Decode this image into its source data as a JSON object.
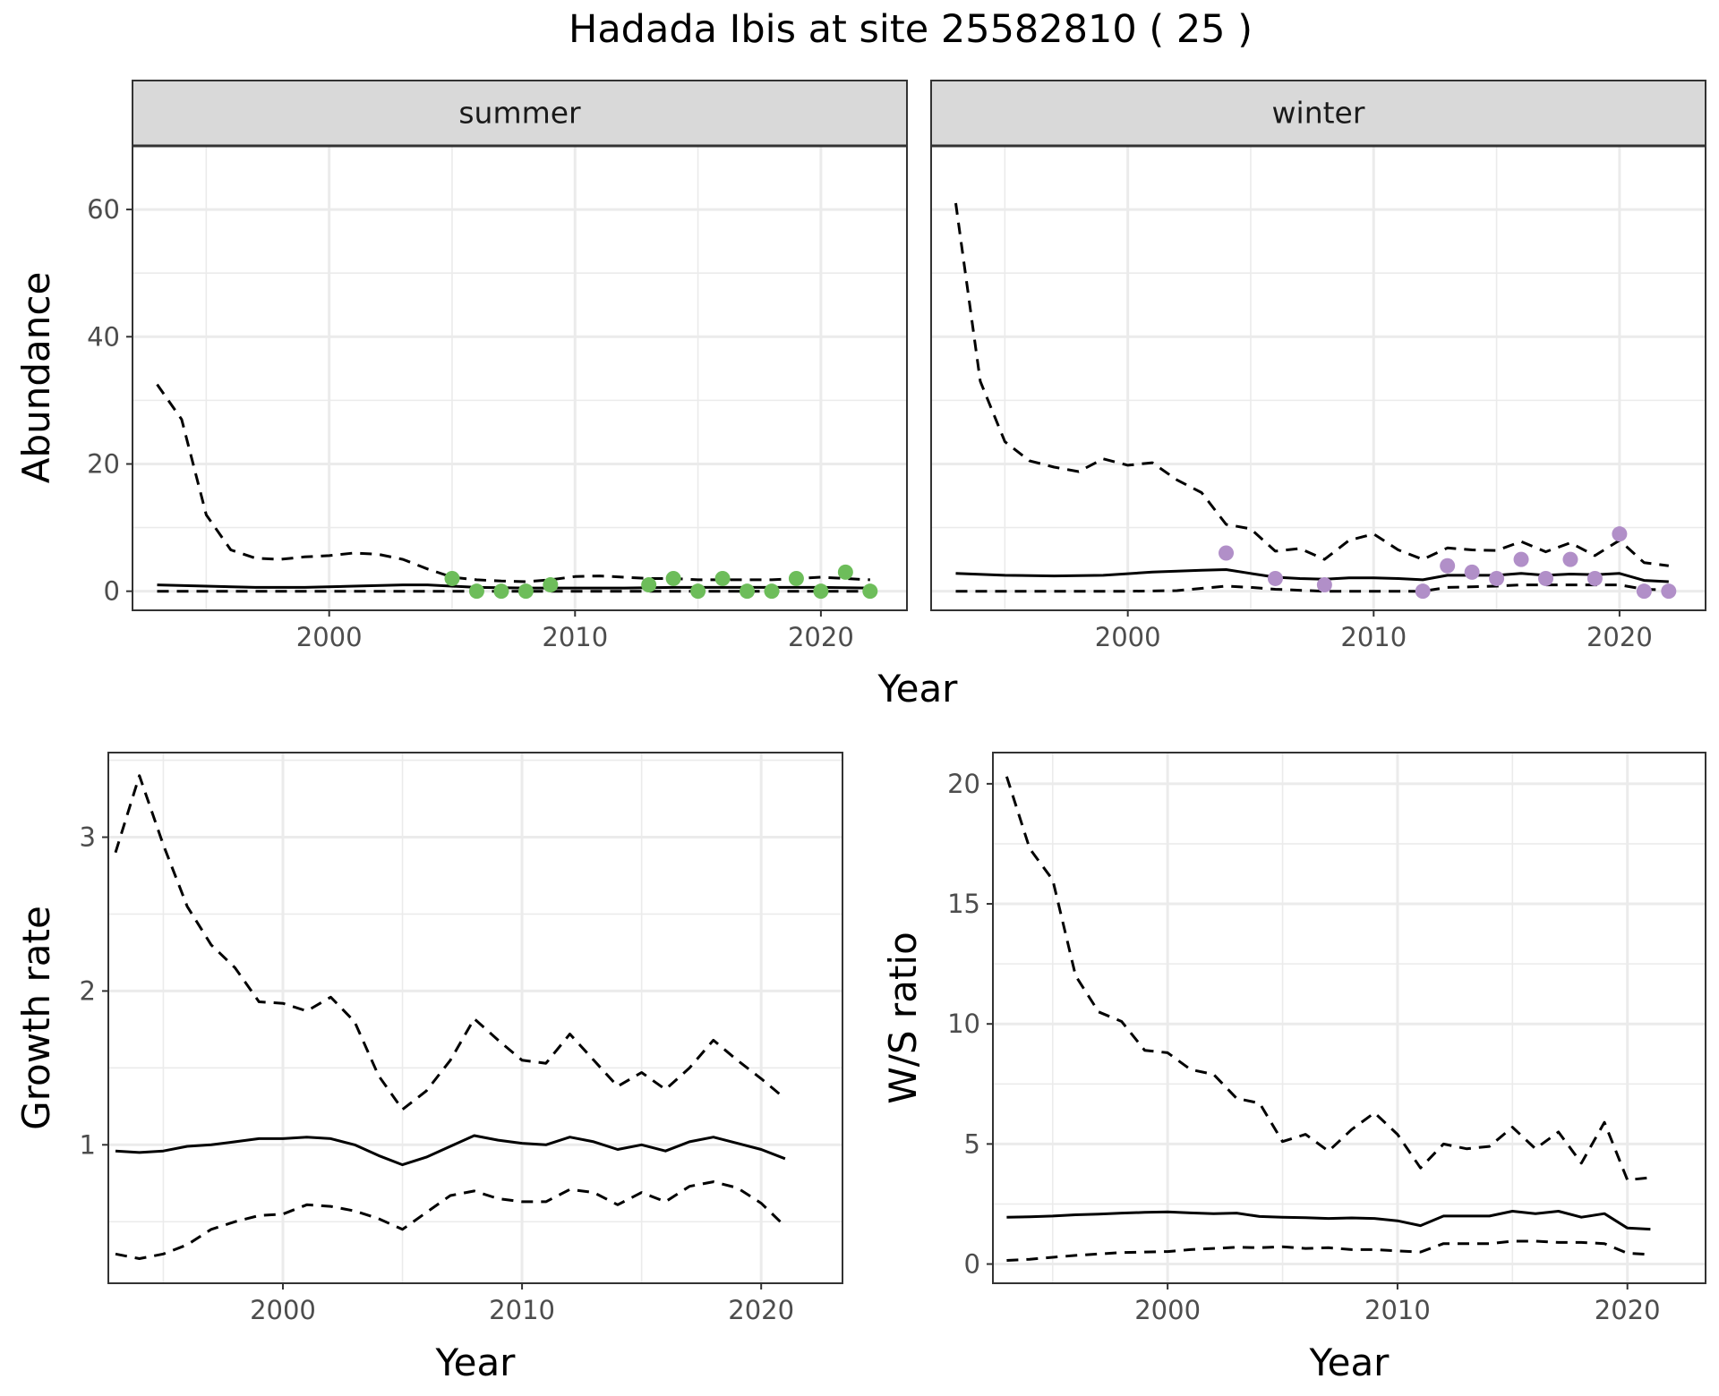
{
  "title": "Hadada Ibis at site 25582810 ( 25 )",
  "colors": {
    "summer_points": "#6dbd5a",
    "winter_points": "#b18fc8",
    "line": "#000000",
    "strip": "#d9d9d9",
    "grid": "#ebebeb"
  },
  "chart_data": [
    {
      "type": "scatter",
      "panel": "summer",
      "xlabel": "Year",
      "ylabel": "Abundance",
      "xlim": [
        1992,
        2023.5
      ],
      "ylim": [
        -3,
        70
      ],
      "xticks": [
        2000,
        2010,
        2020
      ],
      "yticks": [
        0,
        20,
        40,
        60
      ],
      "grid": true,
      "points": {
        "x": [
          2005,
          2006,
          2007,
          2008,
          2009,
          2013,
          2014,
          2015,
          2016,
          2017,
          2018,
          2019,
          2020,
          2021,
          2022
        ],
        "y": [
          2,
          0,
          0,
          0,
          1,
          1,
          2,
          0,
          2,
          0,
          0,
          2,
          0,
          3,
          0
        ]
      },
      "series": [
        {
          "style": "solid",
          "x": [
            1993,
            1995,
            1997,
            1999,
            2001,
            2003,
            2004,
            2006,
            2008,
            2010,
            2012,
            2014,
            2016,
            2018,
            2020,
            2022
          ],
          "y": [
            1.0,
            0.8,
            0.6,
            0.6,
            0.8,
            1.0,
            1.0,
            0.6,
            0.5,
            0.5,
            0.5,
            0.6,
            0.6,
            0.6,
            0.6,
            0.5
          ]
        },
        {
          "style": "dashed",
          "x": [
            1993,
            1994,
            1995,
            1996,
            1997,
            1998,
            1999,
            2000,
            2001,
            2002,
            2003,
            2004,
            2005,
            2006,
            2007,
            2008,
            2009,
            2010,
            2011,
            2012,
            2013,
            2014,
            2015,
            2016,
            2017,
            2018,
            2019,
            2020,
            2021,
            2022
          ],
          "y": [
            32.5,
            27,
            12,
            6.5,
            5.2,
            5.0,
            5.4,
            5.6,
            6.0,
            5.8,
            5.0,
            3.5,
            2.2,
            1.8,
            1.6,
            1.5,
            1.8,
            2.3,
            2.4,
            2.2,
            2.0,
            2.0,
            1.8,
            1.8,
            1.8,
            1.8,
            2.0,
            2.2,
            2.0,
            1.8
          ]
        },
        {
          "style": "dashed",
          "x": [
            1993,
            2000,
            2005,
            2010,
            2015,
            2020,
            2022
          ],
          "y": [
            0,
            0,
            0,
            0,
            0,
            0,
            0
          ]
        }
      ]
    },
    {
      "type": "scatter",
      "panel": "winter",
      "xlabel": "Year",
      "ylabel": "",
      "xlim": [
        1992,
        2023.5
      ],
      "ylim": [
        -3,
        70
      ],
      "xticks": [
        2000,
        2010,
        2020
      ],
      "yticks": [
        0,
        20,
        40,
        60
      ],
      "grid": true,
      "points": {
        "x": [
          2004,
          2006,
          2008,
          2012,
          2013,
          2014,
          2015,
          2016,
          2017,
          2018,
          2019,
          2020,
          2021,
          2022
        ],
        "y": [
          6,
          2,
          1,
          0,
          4,
          3,
          2,
          5,
          2,
          5,
          2,
          9,
          0,
          0
        ]
      },
      "series": [
        {
          "style": "solid",
          "x": [
            1993,
            1995,
            1997,
            1999,
            2001,
            2003,
            2004,
            2005,
            2006,
            2007,
            2008,
            2009,
            2010,
            2011,
            2012,
            2013,
            2014,
            2015,
            2016,
            2017,
            2018,
            2019,
            2020,
            2021,
            2022
          ],
          "y": [
            2.8,
            2.5,
            2.4,
            2.5,
            3.0,
            3.3,
            3.4,
            2.8,
            2.2,
            2.0,
            1.9,
            2.1,
            2.1,
            2.0,
            1.8,
            2.5,
            2.5,
            2.5,
            2.8,
            2.5,
            2.7,
            2.6,
            2.8,
            1.7,
            1.5
          ]
        },
        {
          "style": "dashed",
          "x": [
            1993,
            1994,
            1995,
            1996,
            1997,
            1998,
            1999,
            2000,
            2001,
            2002,
            2003,
            2004,
            2005,
            2006,
            2007,
            2008,
            2009,
            2010,
            2011,
            2012,
            2013,
            2014,
            2015,
            2016,
            2017,
            2018,
            2019,
            2020,
            2021,
            2022
          ],
          "y": [
            61,
            33,
            23.5,
            20.5,
            19.5,
            18.8,
            20.8,
            19.8,
            20.2,
            17.5,
            15.5,
            10.5,
            9.8,
            6.3,
            6.7,
            5.0,
            8.0,
            9.0,
            6.5,
            5.0,
            6.8,
            6.5,
            6.4,
            7.8,
            6.2,
            7.6,
            5.6,
            8.0,
            4.5,
            4.0
          ]
        },
        {
          "style": "dashed",
          "x": [
            1993,
            2000,
            2002,
            2004,
            2005,
            2006,
            2008,
            2010,
            2012,
            2013,
            2015,
            2016,
            2018,
            2020,
            2021,
            2022
          ],
          "y": [
            0,
            0,
            0.1,
            0.8,
            0.6,
            0.3,
            0,
            0,
            0,
            0.6,
            0.8,
            1.0,
            1.0,
            1.0,
            0.3,
            0.2
          ]
        }
      ]
    },
    {
      "type": "line",
      "panel": "growth",
      "xlabel": "Year",
      "ylabel": "Growth rate",
      "xlim": [
        1992.7,
        2023.4
      ],
      "ylim": [
        0.1,
        3.55
      ],
      "xticks": [
        2000,
        2010,
        2020
      ],
      "yticks": [
        1,
        2,
        3
      ],
      "grid": true,
      "series": [
        {
          "style": "solid",
          "x": [
            1993,
            1994,
            1995,
            1996,
            1997,
            1998,
            1999,
            2000,
            2001,
            2002,
            2003,
            2004,
            2005,
            2006,
            2007,
            2008,
            2009,
            2010,
            2011,
            2012,
            2013,
            2014,
            2015,
            2016,
            2017,
            2018,
            2019,
            2020,
            2021
          ],
          "y": [
            0.96,
            0.95,
            0.96,
            0.99,
            1.0,
            1.02,
            1.04,
            1.04,
            1.05,
            1.04,
            1.0,
            0.93,
            0.87,
            0.92,
            0.99,
            1.06,
            1.03,
            1.01,
            1.0,
            1.05,
            1.02,
            0.97,
            1.0,
            0.96,
            1.02,
            1.05,
            1.01,
            0.97,
            0.91
          ]
        },
        {
          "style": "dashed",
          "x": [
            1993,
            1994,
            1995,
            1996,
            1997,
            1998,
            1999,
            2000,
            2001,
            2002,
            2003,
            2004,
            2005,
            2006,
            2007,
            2008,
            2009,
            2010,
            2011,
            2012,
            2013,
            2014,
            2015,
            2016,
            2017,
            2018,
            2019,
            2020,
            2021
          ],
          "y": [
            2.9,
            3.4,
            2.95,
            2.55,
            2.3,
            2.15,
            1.93,
            1.92,
            1.87,
            1.96,
            1.8,
            1.45,
            1.23,
            1.35,
            1.55,
            1.82,
            1.68,
            1.55,
            1.53,
            1.72,
            1.55,
            1.38,
            1.47,
            1.36,
            1.5,
            1.68,
            1.55,
            1.43,
            1.3
          ]
        },
        {
          "style": "dashed",
          "x": [
            1993,
            1994,
            1995,
            1996,
            1997,
            1998,
            1999,
            2000,
            2001,
            2002,
            2003,
            2004,
            2005,
            2006,
            2007,
            2008,
            2009,
            2010,
            2011,
            2012,
            2013,
            2014,
            2015,
            2016,
            2017,
            2018,
            2019,
            2020,
            2021
          ],
          "y": [
            0.29,
            0.26,
            0.29,
            0.35,
            0.45,
            0.5,
            0.54,
            0.55,
            0.61,
            0.6,
            0.57,
            0.52,
            0.45,
            0.56,
            0.67,
            0.7,
            0.65,
            0.63,
            0.63,
            0.71,
            0.69,
            0.61,
            0.69,
            0.63,
            0.73,
            0.76,
            0.72,
            0.62,
            0.47
          ]
        }
      ]
    },
    {
      "type": "line",
      "panel": "ratio",
      "xlabel": "Year",
      "ylabel": "W/S ratio",
      "xlim": [
        1992.4,
        2023.4
      ],
      "ylim": [
        -0.8,
        21.3
      ],
      "xticks": [
        2000,
        2010,
        2020
      ],
      "yticks": [
        0,
        5,
        10,
        15,
        20
      ],
      "grid": true,
      "series": [
        {
          "style": "solid",
          "x": [
            1993,
            1994,
            1995,
            1996,
            1997,
            1998,
            1999,
            2000,
            2001,
            2002,
            2003,
            2004,
            2005,
            2006,
            2007,
            2008,
            2009,
            2010,
            2011,
            2012,
            2013,
            2014,
            2015,
            2016,
            2017,
            2018,
            2019,
            2020,
            2021
          ],
          "y": [
            1.95,
            1.97,
            2.0,
            2.05,
            2.08,
            2.12,
            2.15,
            2.17,
            2.13,
            2.1,
            2.12,
            1.98,
            1.95,
            1.93,
            1.9,
            1.92,
            1.9,
            1.8,
            1.6,
            2.0,
            2.0,
            2.0,
            2.2,
            2.1,
            2.2,
            1.95,
            2.1,
            1.5,
            1.45
          ]
        },
        {
          "style": "dashed",
          "x": [
            1993,
            1994,
            1995,
            1996,
            1997,
            1998,
            1999,
            2000,
            2001,
            2002,
            2003,
            2004,
            2005,
            2006,
            2007,
            2008,
            2009,
            2010,
            2011,
            2012,
            2013,
            2014,
            2015,
            2016,
            2017,
            2018,
            2019,
            2020,
            2021
          ],
          "y": [
            20.3,
            17.3,
            16.0,
            12.0,
            10.5,
            10.1,
            8.9,
            8.8,
            8.1,
            7.9,
            6.9,
            6.7,
            5.1,
            5.4,
            4.7,
            5.6,
            6.3,
            5.4,
            4.0,
            5.0,
            4.8,
            4.9,
            5.7,
            4.8,
            5.5,
            4.2,
            5.9,
            3.5,
            3.6
          ]
        },
        {
          "style": "dashed",
          "x": [
            1993,
            1994,
            1995,
            1996,
            1997,
            1998,
            1999,
            2000,
            2001,
            2002,
            2003,
            2004,
            2005,
            2006,
            2007,
            2008,
            2009,
            2010,
            2011,
            2012,
            2013,
            2014,
            2015,
            2016,
            2017,
            2018,
            2019,
            2020,
            2021
          ],
          "y": [
            0.15,
            0.2,
            0.28,
            0.36,
            0.42,
            0.48,
            0.5,
            0.52,
            0.6,
            0.65,
            0.7,
            0.68,
            0.72,
            0.65,
            0.68,
            0.6,
            0.6,
            0.55,
            0.5,
            0.85,
            0.85,
            0.85,
            0.95,
            0.95,
            0.9,
            0.9,
            0.85,
            0.45,
            0.4
          ]
        }
      ]
    }
  ],
  "facet_strips": {
    "summer": "summer",
    "winter": "winter"
  },
  "top_xlabel": "Year"
}
